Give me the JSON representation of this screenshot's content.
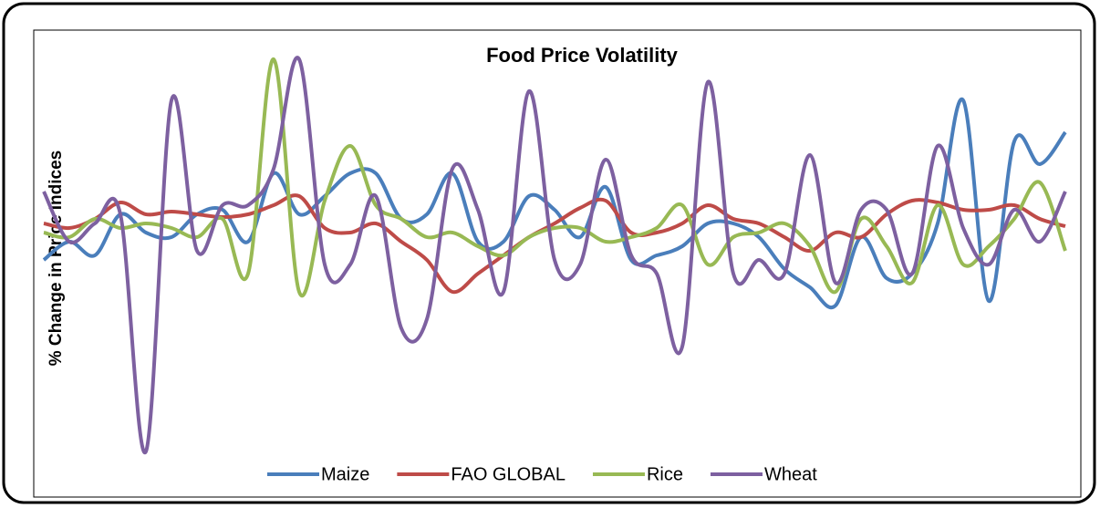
{
  "chart_data": {
    "type": "line",
    "title": "Food Price Volatility",
    "y_label": "% Change in Price Indices",
    "ylim": [
      -290,
      220
    ],
    "legend": "bottom",
    "series": [
      {
        "name": "Maize",
        "color": "#4a7ebb",
        "values": [
          -30,
          -10,
          -25,
          20,
          0,
          -5,
          20,
          25,
          -10,
          65,
          20,
          40,
          65,
          65,
          15,
          20,
          65,
          -10,
          -10,
          40,
          25,
          -5,
          50,
          -30,
          -25,
          -15,
          10,
          10,
          -5,
          -40,
          -60,
          -80,
          -5,
          -50,
          -45,
          10,
          145,
          -75,
          100,
          75,
          110
        ]
      },
      {
        "name": "FAO GLOBAL",
        "color": "#be4b48",
        "values": [
          10,
          5,
          15,
          33,
          20,
          23,
          20,
          17,
          20,
          30,
          40,
          5,
          0,
          10,
          -10,
          -30,
          -65,
          -45,
          -25,
          -5,
          10,
          27,
          35,
          0,
          0,
          10,
          30,
          15,
          10,
          -5,
          -20,
          0,
          -5,
          20,
          35,
          33,
          25,
          25,
          30,
          15,
          7
        ]
      },
      {
        "name": "Rice",
        "color": "#98b954",
        "values": [
          0,
          -5,
          15,
          5,
          10,
          5,
          -5,
          15,
          -45,
          190,
          -65,
          35,
          95,
          30,
          15,
          -5,
          0,
          -15,
          -25,
          -5,
          5,
          5,
          -10,
          -5,
          5,
          30,
          -35,
          -5,
          0,
          10,
          -15,
          -65,
          15,
          -15,
          -55,
          30,
          -35,
          -15,
          15,
          55,
          -20
        ]
      },
      {
        "name": "Wheat",
        "color": "#7d60a0",
        "values": [
          45,
          -10,
          10,
          20,
          -240,
          145,
          -20,
          30,
          30,
          70,
          190,
          -35,
          -35,
          40,
          -105,
          -95,
          70,
          25,
          -65,
          155,
          -30,
          -35,
          80,
          -25,
          -45,
          -125,
          165,
          -45,
          -30,
          -45,
          85,
          -55,
          25,
          25,
          -45,
          95,
          5,
          -35,
          25,
          -10,
          45
        ]
      }
    ]
  }
}
